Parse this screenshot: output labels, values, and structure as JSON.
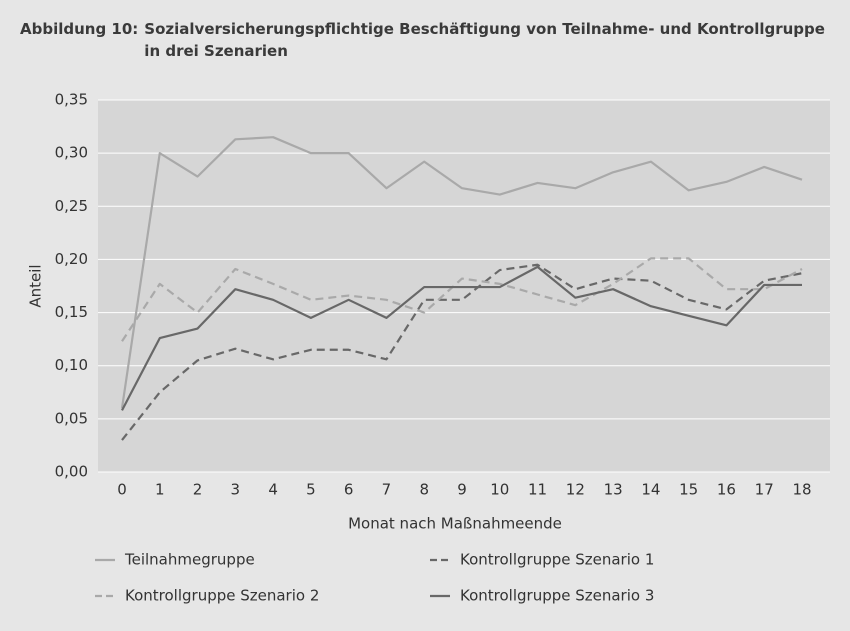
{
  "chart_data": {
    "type": "line",
    "figure_label": "Abbildung 10:",
    "title": "Sozialversicherungspflichtige Beschäftigung von Teilnahme- und Kontrollgruppe in drei Szenarien",
    "xlabel": "Monat nach Maßnahmeende",
    "ylabel": "Anteil",
    "categories": [
      "0",
      "1",
      "2",
      "3",
      "4",
      "5",
      "6",
      "7",
      "8",
      "9",
      "10",
      "11",
      "12",
      "13",
      "14",
      "15",
      "16",
      "17",
      "18"
    ],
    "ylim": [
      0,
      0.35
    ],
    "yticks": [
      {
        "value": 0,
        "label": "0,00"
      },
      {
        "value": 0.05,
        "label": "0,05"
      },
      {
        "value": 0.1,
        "label": "0,10"
      },
      {
        "value": 0.15,
        "label": "0,15"
      },
      {
        "value": 0.2,
        "label": "0,20"
      },
      {
        "value": 0.25,
        "label": "0,25"
      },
      {
        "value": 0.3,
        "label": "0,30"
      },
      {
        "value": 0.35,
        "label": "0,35"
      }
    ],
    "grid": true,
    "legend": "bottom",
    "series": [
      {
        "name": "Teilnahmegruppe",
        "color": "#a9a9a9",
        "dash": false,
        "values": [
          0.06,
          0.3,
          0.278,
          0.313,
          0.315,
          0.3,
          0.3,
          0.267,
          0.292,
          0.267,
          0.261,
          0.272,
          0.267,
          0.282,
          0.292,
          0.265,
          0.273,
          0.287,
          0.275
        ]
      },
      {
        "name": "Kontrollgruppe Szenario 1",
        "color": "#686868",
        "dash": true,
        "values": [
          0.03,
          0.075,
          0.105,
          0.116,
          0.106,
          0.115,
          0.115,
          0.106,
          0.162,
          0.162,
          0.19,
          0.195,
          0.172,
          0.182,
          0.18,
          0.162,
          0.153,
          0.18,
          0.187
        ]
      },
      {
        "name": "Kontrollgruppe Szenario 2",
        "color": "#a9a9a9",
        "dash": true,
        "values": [
          0.123,
          0.177,
          0.15,
          0.191,
          0.177,
          0.162,
          0.166,
          0.162,
          0.15,
          0.182,
          0.177,
          0.167,
          0.157,
          0.177,
          0.201,
          0.201,
          0.172,
          0.172,
          0.191
        ]
      },
      {
        "name": "Kontrollgruppe Szenario 3",
        "color": "#686868",
        "dash": false,
        "values": [
          0.058,
          0.126,
          0.135,
          0.172,
          0.162,
          0.145,
          0.162,
          0.145,
          0.174,
          0.174,
          0.174,
          0.193,
          0.164,
          0.172,
          0.156,
          0.147,
          0.138,
          0.176,
          0.176
        ]
      }
    ]
  }
}
